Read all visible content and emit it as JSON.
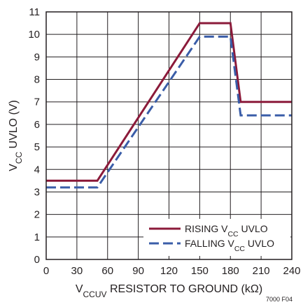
{
  "chart_data": {
    "type": "line",
    "title": "",
    "xlabel": {
      "parts": [
        {
          "text": "V",
          "sub": false
        },
        {
          "text": "CCUV",
          "sub": true
        },
        {
          "text": " RESISTOR TO GROUND (kΩ)",
          "sub": false
        }
      ]
    },
    "ylabel": {
      "parts": [
        {
          "text": "V",
          "sub": false
        },
        {
          "text": "CC",
          "sub": true
        },
        {
          "text": " UVLO (V)",
          "sub": false
        }
      ]
    },
    "xlim": [
      0,
      240
    ],
    "ylim": [
      0,
      11
    ],
    "xticks": [
      0,
      30,
      60,
      90,
      120,
      150,
      180,
      210,
      240
    ],
    "yticks": [
      0,
      1,
      2,
      3,
      4,
      5,
      6,
      7,
      8,
      9,
      10,
      11
    ],
    "grid": true,
    "legend_position": "bottom-right",
    "series": [
      {
        "name": "RISING VCC UVLO",
        "legend_parts": [
          {
            "text": "RISING V",
            "sub": false
          },
          {
            "text": "CC",
            "sub": true
          },
          {
            "text": " UVLO",
            "sub": false
          }
        ],
        "color": "#8b1a3a",
        "dash": "solid",
        "x": [
          0,
          50,
          150,
          180,
          190,
          240
        ],
        "y": [
          3.5,
          3.5,
          10.5,
          10.5,
          7.0,
          7.0
        ]
      },
      {
        "name": "FALLING VCC UVLO",
        "legend_parts": [
          {
            "text": "FALLING V",
            "sub": false
          },
          {
            "text": "CC",
            "sub": true
          },
          {
            "text": " UVLO",
            "sub": false
          }
        ],
        "color": "#3a5da8",
        "dash": "dashed",
        "x": [
          0,
          50,
          150,
          180,
          190,
          240
        ],
        "y": [
          3.2,
          3.2,
          9.9,
          9.9,
          6.4,
          6.4
        ]
      }
    ],
    "footnote": "7000 F04"
  }
}
